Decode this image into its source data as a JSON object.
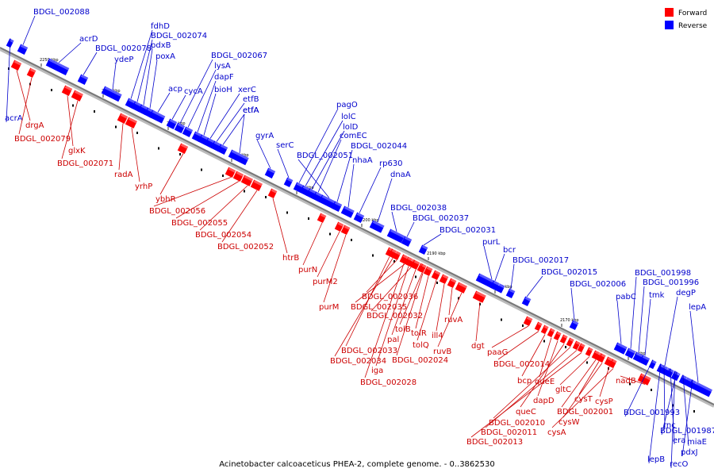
{
  "caption": "Acinetobacter calcoaceticus PHEA-2, complete genome. - 0..3862530",
  "legend": [
    {
      "label": "Forward",
      "color": "#ff0000"
    },
    {
      "label": "Reverse",
      "color": "#0000ff"
    }
  ],
  "colors": {
    "forward": "#ff0000",
    "reverse": "#0000ff",
    "forward_label": "#cc0000",
    "reverse_label": "#0000cc",
    "backbone": "#777777"
  },
  "ticks": [
    "2250 kbp",
    "2240 kbp",
    "2230 kbp",
    "2220 kbp",
    "2210 kbp",
    "2200 kbp",
    "2190 kbp",
    "2180 kbp",
    "2170 kbp",
    "2160 kbp"
  ],
  "reverse_genes": [
    "BDGL_002088",
    "acrD",
    "BDGL_002078",
    "ydeP",
    "fdhD",
    "BDGL_002074",
    "pdxB",
    "poxA",
    "acp",
    "cycA",
    "BDGL_002067",
    "lysA",
    "dapF",
    "bioH",
    "xerC",
    "etfB",
    "etfA",
    "etfA",
    "gyrA",
    "serC",
    "pagO",
    "lolC",
    "lolD",
    "comEC",
    "BDGL_002051",
    "BDGL_002044",
    "nhaA",
    "rp630",
    "dnaA",
    "BDGL_002038",
    "BDGL_002037",
    "BDGL_002031",
    "purL",
    "bcr",
    "BDGL_002017",
    "BDGL_002015",
    "BDGL_002006",
    "pabC",
    "BDGL_001998",
    "BDGL_001996",
    "tmk",
    "degP",
    "lepA",
    "acrA",
    "BDGL_001993",
    "BDGL_001987",
    "rnc",
    "era",
    "miaE",
    "pdxJ",
    "lepB",
    "recO"
  ],
  "forward_genes": [
    "drgA",
    "BDGL_002079",
    "glxK",
    "BDGL_002071",
    "radA",
    "yrhP",
    "ybhR",
    "BDGL_002056",
    "BDGL_002055",
    "BDGL_002054",
    "BDGL_002052",
    "htrB",
    "purN",
    "purM2",
    "purM",
    "BDGL_002036",
    "BDGL_002035",
    "BDGL_002032",
    "pal",
    "tolB",
    "tolR",
    "tolQ",
    "ill4",
    "ruvA",
    "ruvB",
    "dgt",
    "BDGL_002033",
    "BDGL_002034",
    "BDGL_002024",
    "iga",
    "BDGL_002028",
    "paaG",
    "BDGL_002014",
    "bcp",
    "queE",
    "dapD",
    "queC",
    "BDGL_002010",
    "BDGL_002011",
    "BDGL_002013",
    "gltC",
    "cysT",
    "cysP",
    "BDGL_002001",
    "cysW",
    "cysA",
    "nadB"
  ]
}
